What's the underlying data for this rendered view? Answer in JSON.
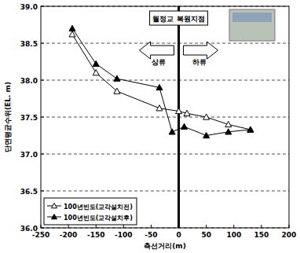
{
  "chart_data": {
    "type": "line",
    "x_label": "측선거리(m)",
    "y_label": "단면평균수위(EL. m)",
    "annotations": [
      "월정교 복원지점",
      "상류",
      "하류"
    ],
    "vline": 0,
    "xlim": [
      -250,
      200
    ],
    "xticks": [
      -250,
      -200,
      -150,
      -100,
      -50,
      0,
      50,
      100,
      150,
      200
    ],
    "ylim": [
      36.0,
      39.0
    ],
    "yticks": [
      {
        "value": 36.0,
        "label": "36.0"
      },
      {
        "value": 36.5,
        "label": "36.5"
      },
      {
        "value": 37.0,
        "label": "37.0"
      },
      {
        "value": 37.5,
        "label": "37.5"
      },
      {
        "value": 38.0,
        "label": "38.0"
      },
      {
        "value": 38.5,
        "label": "38.5"
      },
      {
        "value": 39.0,
        "label": "39.0"
      }
    ],
    "grid": true,
    "legend": "bottom-left",
    "series": [
      {
        "name": "100년빈도(교각설치전)",
        "color": "#000000",
        "marker": "triangle-open",
        "x": [
          -193,
          -150,
          -112,
          -35,
          0,
          15,
          50,
          90,
          130
        ],
        "values": [
          38.62,
          38.1,
          37.85,
          37.62,
          37.58,
          37.55,
          37.5,
          37.4,
          37.33
        ]
      },
      {
        "name": "100년빈도(교각설치후)",
        "color": "#000000",
        "marker": "triangle-filled",
        "x": [
          -193,
          -150,
          -112,
          -35,
          -12,
          10,
          50,
          90,
          130
        ],
        "values": [
          38.7,
          38.22,
          38.02,
          37.9,
          37.3,
          37.37,
          37.25,
          37.3,
          37.33
        ]
      }
    ]
  }
}
